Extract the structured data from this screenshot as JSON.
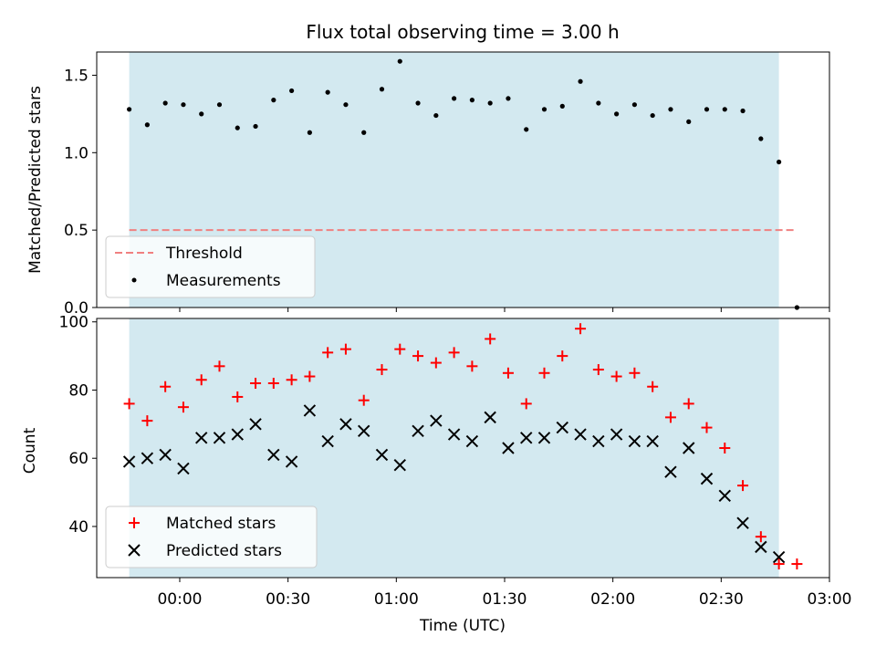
{
  "title": "Flux total observing time = 3.00 h",
  "chart_data": [
    {
      "type": "scatter",
      "panel": "top",
      "title": "Flux total observing time = 3.00 h",
      "xlabel": "",
      "ylabel": "Matched/Predicted stars",
      "ylim": [
        0,
        1.65
      ],
      "xlim": [
        "-00:23",
        "03:00"
      ],
      "yticks": [
        "0.0",
        "0.5",
        "1.0",
        "1.5"
      ],
      "shaded_span": {
        "start": "-00:14",
        "end": "02:46",
        "color": "#d3e9f0"
      },
      "grid": false,
      "legend_position": "lower-left",
      "threshold": {
        "name": "Threshold",
        "value": 0.5,
        "x_start": "-00:14",
        "x_end": "02:51",
        "color": "#f08080",
        "style": "dashed"
      },
      "series": [
        {
          "name": "Measurements",
          "marker": "dot",
          "color": "#000000",
          "x": [
            "-00:14",
            "-00:09",
            "-00:04",
            "00:01",
            "00:06",
            "00:11",
            "00:16",
            "00:21",
            "00:26",
            "00:31",
            "00:36",
            "00:41",
            "00:46",
            "00:51",
            "00:56",
            "01:01",
            "01:06",
            "01:11",
            "01:16",
            "01:21",
            "01:26",
            "01:31",
            "01:36",
            "01:41",
            "01:46",
            "01:51",
            "01:56",
            "02:01",
            "02:06",
            "02:11",
            "02:16",
            "02:21",
            "02:26",
            "02:31",
            "02:36",
            "02:41",
            "02:46",
            "02:51"
          ],
          "y": [
            1.28,
            1.18,
            1.32,
            1.31,
            1.25,
            1.31,
            1.16,
            1.17,
            1.34,
            1.4,
            1.13,
            1.39,
            1.31,
            1.13,
            1.41,
            1.59,
            1.32,
            1.24,
            1.35,
            1.34,
            1.32,
            1.35,
            1.15,
            1.28,
            1.3,
            1.46,
            1.32,
            1.25,
            1.31,
            1.24,
            1.28,
            1.2,
            1.28,
            1.28,
            1.27,
            1.09,
            0.94,
            0.0
          ]
        }
      ]
    },
    {
      "type": "scatter",
      "panel": "bottom",
      "xlabel": "Time (UTC)",
      "ylabel": "Count",
      "ylim": [
        25,
        101
      ],
      "xlim": [
        "-00:23",
        "03:00"
      ],
      "xticks": [
        "00:00",
        "00:30",
        "01:00",
        "01:30",
        "02:00",
        "02:30",
        "03:00"
      ],
      "yticks": [
        "40",
        "60",
        "80",
        "100"
      ],
      "shaded_span": {
        "start": "-00:14",
        "end": "02:46",
        "color": "#d3e9f0"
      },
      "grid": false,
      "legend_position": "lower-left",
      "x": [
        "-00:14",
        "-00:09",
        "-00:04",
        "00:01",
        "00:06",
        "00:11",
        "00:16",
        "00:21",
        "00:26",
        "00:31",
        "00:36",
        "00:41",
        "00:46",
        "00:51",
        "00:56",
        "01:01",
        "01:06",
        "01:11",
        "01:16",
        "01:21",
        "01:26",
        "01:31",
        "01:36",
        "01:41",
        "01:46",
        "01:51",
        "01:56",
        "02:01",
        "02:06",
        "02:11",
        "02:16",
        "02:21",
        "02:26",
        "02:31",
        "02:36",
        "02:41",
        "02:46",
        "02:51"
      ],
      "series": [
        {
          "name": "Matched stars",
          "marker": "plus",
          "color": "#ff0000",
          "values": [
            76,
            71,
            81,
            75,
            83,
            87,
            78,
            82,
            82,
            83,
            84,
            91,
            92,
            77,
            86,
            92,
            90,
            88,
            91,
            87,
            95,
            85,
            76,
            85,
            90,
            98,
            86,
            84,
            85,
            81,
            72,
            76,
            69,
            63,
            52,
            37,
            29,
            29
          ]
        },
        {
          "name": "Predicted stars",
          "marker": "x",
          "color": "#000000",
          "values": [
            59,
            60,
            61,
            57,
            66,
            66,
            67,
            70,
            61,
            59,
            74,
            65,
            70,
            68,
            61,
            58,
            68,
            71,
            67,
            65,
            72,
            63,
            66,
            66,
            69,
            67,
            65,
            67,
            65,
            65,
            56,
            63,
            54,
            49,
            41,
            34,
            31,
            null
          ]
        }
      ]
    }
  ]
}
